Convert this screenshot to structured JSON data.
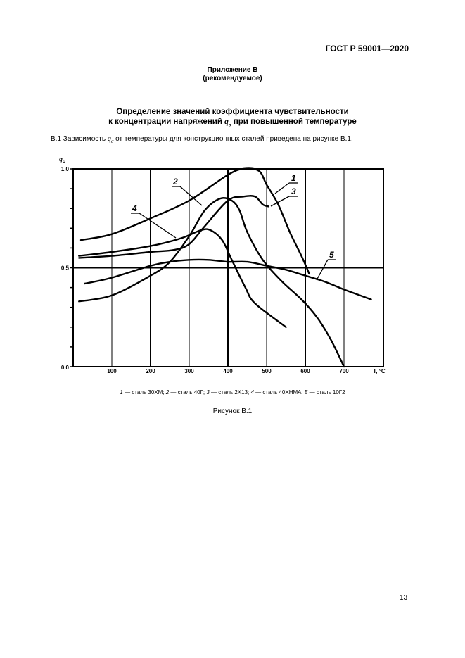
{
  "header": {
    "doc_code": "ГОСТ Р 59001—2020"
  },
  "annex": {
    "title": "Приложение В",
    "status": "(рекомендуемое)"
  },
  "heading": {
    "line1": "Определение значений коэффициента чувствительности",
    "line2_pre": "к концентрации напряжений ",
    "symbol": "q",
    "symbol_sub": "σ",
    "line2_post": " при повышенной температуре"
  },
  "paragraph": {
    "pre": "В.1 Зависимость ",
    "symbol": "q",
    "symbol_sub": "σ",
    "post": " от температуры для конструкционных сталей приведена на рисунке В.1."
  },
  "chart_data": {
    "type": "line",
    "title": "",
    "xlabel": "T, °C",
    "ylabel": "qσ",
    "xlim": [
      0,
      750
    ],
    "ylim": [
      0.0,
      1.0
    ],
    "x_ticks": [
      100,
      200,
      300,
      400,
      500,
      600,
      700
    ],
    "x_tick_labels": [
      "100",
      "200",
      "300",
      "400",
      "500",
      "600",
      "700",
      "T, °C"
    ],
    "y_ticks": [
      0.0,
      0.1,
      0.2,
      0.3,
      0.4,
      0.5,
      0.6,
      0.7,
      0.8,
      0.9,
      1.0
    ],
    "y_tick_labels": [
      "0,0",
      "0,5",
      "1,0"
    ],
    "grid": true,
    "series": [
      {
        "id": "1",
        "name": "сталь 30ХМ",
        "x": [
          20,
          100,
          200,
          300,
          400,
          440,
          480,
          500,
          530,
          560,
          590,
          610
        ],
        "y": [
          0.64,
          0.67,
          0.75,
          0.84,
          0.97,
          1.0,
          0.99,
          0.92,
          0.82,
          0.68,
          0.56,
          0.47
        ]
      },
      {
        "id": "2",
        "name": "сталь 40Г",
        "x": [
          15,
          100,
          200,
          250,
          300,
          340,
          380,
          410,
          430,
          450,
          490,
          540,
          590,
          630,
          665,
          700
        ],
        "y": [
          0.33,
          0.36,
          0.46,
          0.53,
          0.66,
          0.79,
          0.85,
          0.84,
          0.79,
          0.68,
          0.54,
          0.43,
          0.34,
          0.25,
          0.14,
          0.0
        ]
      },
      {
        "id": "3",
        "name": "сталь 2Х13",
        "x": [
          15,
          100,
          200,
          260,
          300,
          340,
          400,
          440,
          470,
          490,
          505
        ],
        "y": [
          0.55,
          0.56,
          0.58,
          0.59,
          0.62,
          0.71,
          0.84,
          0.86,
          0.86,
          0.82,
          0.81
        ]
      },
      {
        "id": "4",
        "name": "сталь 40ХНМА",
        "x": [
          15,
          100,
          200,
          280,
          330,
          355,
          385,
          410,
          445,
          470,
          550
        ],
        "y": [
          0.56,
          0.58,
          0.61,
          0.65,
          0.69,
          0.69,
          0.64,
          0.54,
          0.4,
          0.32,
          0.2
        ]
      },
      {
        "id": "5",
        "name": "сталь 10Г2",
        "x": [
          30,
          100,
          200,
          250,
          300,
          350,
          400,
          450,
          500,
          550,
          600,
          650,
          700,
          770
        ],
        "y": [
          0.42,
          0.45,
          0.51,
          0.53,
          0.54,
          0.54,
          0.53,
          0.53,
          0.51,
          0.49,
          0.46,
          0.43,
          0.39,
          0.34
        ]
      }
    ],
    "annotations": [
      "1",
      "2",
      "3",
      "4",
      "5"
    ],
    "legend_position": "below"
  },
  "legend": [
    {
      "num": "1",
      "text": " — сталь 30ХМ; "
    },
    {
      "num": "2",
      "text": " — сталь 40Г; "
    },
    {
      "num": "3",
      "text": " — сталь 2Х13; "
    },
    {
      "num": "4",
      "text": " — сталь 40ХНМА; "
    },
    {
      "num": "5",
      "text": " — сталь 10Г2"
    }
  ],
  "figure_caption": "Рисунок В.1",
  "page_number": "13"
}
